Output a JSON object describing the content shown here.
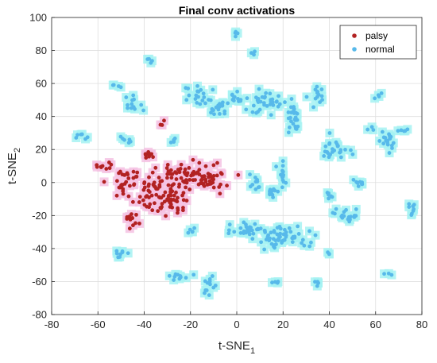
{
  "chart_data": {
    "type": "scatter",
    "title": "Final conv activations",
    "xlabel": {
      "base": "t-SNE",
      "sub": "1"
    },
    "ylabel": {
      "base": "t-SNE",
      "sub": "2"
    },
    "xlim": [
      -80,
      80
    ],
    "ylim": [
      -80,
      100
    ],
    "xticks": [
      "-80",
      "-60",
      "-40",
      "-20",
      "0",
      "20",
      "40",
      "60",
      "80"
    ],
    "yticks": [
      "-80",
      "-60",
      "-40",
      "-20",
      "0",
      "20",
      "40",
      "60",
      "80",
      "100"
    ],
    "grid": true,
    "legend_position": "top-right",
    "series": [
      {
        "name": "palsy",
        "color": "#b22222",
        "halo_color": "#f4c2e3",
        "clusters": [
          {
            "cx": -35,
            "cy": -5,
            "rx": 12,
            "ry": 10,
            "n": 70
          },
          {
            "cx": -22,
            "cy": 5,
            "rx": 12,
            "ry": 8,
            "n": 55
          },
          {
            "cx": -10,
            "cy": 2,
            "rx": 6,
            "ry": 6,
            "n": 30
          },
          {
            "cx": -48,
            "cy": 2,
            "rx": 6,
            "ry": 7,
            "n": 25
          },
          {
            "cx": -58,
            "cy": 10,
            "rx": 4,
            "ry": 3,
            "n": 10
          },
          {
            "cx": -38,
            "cy": 17,
            "rx": 3,
            "ry": 3,
            "n": 10
          },
          {
            "cx": -45,
            "cy": -22,
            "rx": 3,
            "ry": 5,
            "n": 12
          },
          {
            "cx": -32,
            "cy": 35,
            "rx": 1.5,
            "ry": 3,
            "n": 3
          },
          {
            "cx": -28,
            "cy": -15,
            "rx": 8,
            "ry": 6,
            "n": 25
          }
        ]
      },
      {
        "name": "normal",
        "color": "#57b9ea",
        "halo_color": "#a6f2f2",
        "clusters": [
          {
            "cx": 20,
            "cy": -33,
            "rx": 10,
            "ry": 6,
            "n": 60
          },
          {
            "cx": 5,
            "cy": -28,
            "rx": 6,
            "ry": 6,
            "n": 30
          },
          {
            "cx": 12,
            "cy": 48,
            "rx": 9,
            "ry": 6,
            "n": 35
          },
          {
            "cx": -8,
            "cy": 47,
            "rx": 4,
            "ry": 6,
            "n": 20
          },
          {
            "cx": 0,
            "cy": 52,
            "rx": 3,
            "ry": 5,
            "n": 12
          },
          {
            "cx": 25,
            "cy": 40,
            "rx": 3,
            "ry": 10,
            "n": 25
          },
          {
            "cx": -17,
            "cy": 50,
            "rx": 5,
            "ry": 7,
            "n": 18
          },
          {
            "cx": 20,
            "cy": 5,
            "rx": 2,
            "ry": 8,
            "n": 15
          },
          {
            "cx": 15,
            "cy": -5,
            "rx": 3,
            "ry": 4,
            "n": 10
          },
          {
            "cx": 8,
            "cy": 0,
            "rx": 3,
            "ry": 4,
            "n": 10
          },
          {
            "cx": 48,
            "cy": -20,
            "rx": 5,
            "ry": 4,
            "n": 18
          },
          {
            "cx": 42,
            "cy": 20,
            "rx": 5,
            "ry": 6,
            "n": 25
          },
          {
            "cx": 65,
            "cy": 25,
            "rx": 4,
            "ry": 6,
            "n": 18
          },
          {
            "cx": 35,
            "cy": 52,
            "rx": 3,
            "ry": 7,
            "n": 14
          },
          {
            "cx": 53,
            "cy": 0,
            "rx": 3,
            "ry": 2,
            "n": 8
          },
          {
            "cx": 40,
            "cy": -8,
            "rx": 2,
            "ry": 2,
            "n": 6
          },
          {
            "cx": 35,
            "cy": -60,
            "rx": 2,
            "ry": 1.5,
            "n": 5
          },
          {
            "cx": -25,
            "cy": -57,
            "rx": 4,
            "ry": 2,
            "n": 10
          },
          {
            "cx": -12,
            "cy": -63,
            "rx": 3,
            "ry": 6,
            "n": 12
          },
          {
            "cx": -50,
            "cy": -42,
            "rx": 3,
            "ry": 3,
            "n": 8
          },
          {
            "cx": -45,
            "cy": 48,
            "rx": 4,
            "ry": 5,
            "n": 12
          },
          {
            "cx": -48,
            "cy": 26,
            "rx": 3,
            "ry": 2,
            "n": 6
          },
          {
            "cx": -68,
            "cy": 28,
            "rx": 3,
            "ry": 1.5,
            "n": 6
          },
          {
            "cx": -52,
            "cy": 59,
            "rx": 2,
            "ry": 1.5,
            "n": 4
          },
          {
            "cx": -38,
            "cy": 74,
            "rx": 2,
            "ry": 1.5,
            "n": 4
          },
          {
            "cx": 0,
            "cy": 90,
            "rx": 1.5,
            "ry": 1.5,
            "n": 4
          },
          {
            "cx": 7,
            "cy": 79,
            "rx": 1.5,
            "ry": 1.5,
            "n": 3
          },
          {
            "cx": 61,
            "cy": 52,
            "rx": 2,
            "ry": 1.5,
            "n": 4
          },
          {
            "cx": 58,
            "cy": 32,
            "rx": 1.5,
            "ry": 1.5,
            "n": 3
          },
          {
            "cx": 76,
            "cy": -18,
            "rx": 2,
            "ry": 5,
            "n": 8
          },
          {
            "cx": 40,
            "cy": -43,
            "rx": 1.5,
            "ry": 1.5,
            "n": 3
          },
          {
            "cx": 17,
            "cy": -61,
            "rx": 2,
            "ry": 1.5,
            "n": 4
          },
          {
            "cx": -20,
            "cy": -29,
            "rx": 2,
            "ry": 2,
            "n": 5
          },
          {
            "cx": 65,
            "cy": -55,
            "rx": 1.5,
            "ry": 1.5,
            "n": 3
          },
          {
            "cx": 72,
            "cy": 32,
            "rx": 3,
            "ry": 1.5,
            "n": 5
          },
          {
            "cx": -28,
            "cy": 25,
            "rx": 2,
            "ry": 2,
            "n": 5
          }
        ]
      }
    ]
  }
}
